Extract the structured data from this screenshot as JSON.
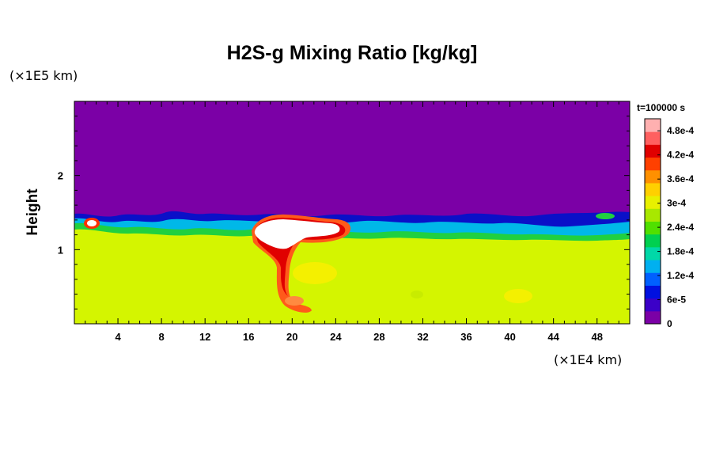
{
  "chart_data": {
    "type": "heatmap",
    "title": "H2S-g Mixing Ratio [kg/kg]",
    "ylabel": "Height",
    "y_unit": "(×1E5 km)",
    "x_unit": "(×1E4 km)",
    "time_label": "t=100000 s",
    "xlim": [
      0,
      51
    ],
    "ylim": [
      0,
      3
    ],
    "x_ticks": [
      "4",
      "8",
      "12",
      "16",
      "20",
      "24",
      "28",
      "32",
      "36",
      "40",
      "44",
      "48"
    ],
    "y_ticks": [
      "1",
      "2"
    ],
    "colorbar": {
      "min": 0,
      "max": 0.00051,
      "tick_labels": [
        "0",
        "6e-5",
        "1.2e-4",
        "1.8e-4",
        "2.4e-4",
        "3e-4",
        "3.6e-4",
        "4.2e-4",
        "4.8e-4"
      ],
      "colors": [
        "#7b00a6",
        "#3b00c8",
        "#0010e0",
        "#0060ff",
        "#00b0f0",
        "#00d8a8",
        "#00d050",
        "#50e000",
        "#a8e800",
        "#e8f000",
        "#ffd000",
        "#ff9000",
        "#ff4000",
        "#e00000",
        "#ff6060",
        "#ffb0b0"
      ]
    },
    "background_value": 0,
    "lower_layer_value": 0.00033,
    "layer_top_height": 1.3,
    "feature": "plume of values above 4.8e-4 centered near x=20, height 0.3-1.4"
  }
}
